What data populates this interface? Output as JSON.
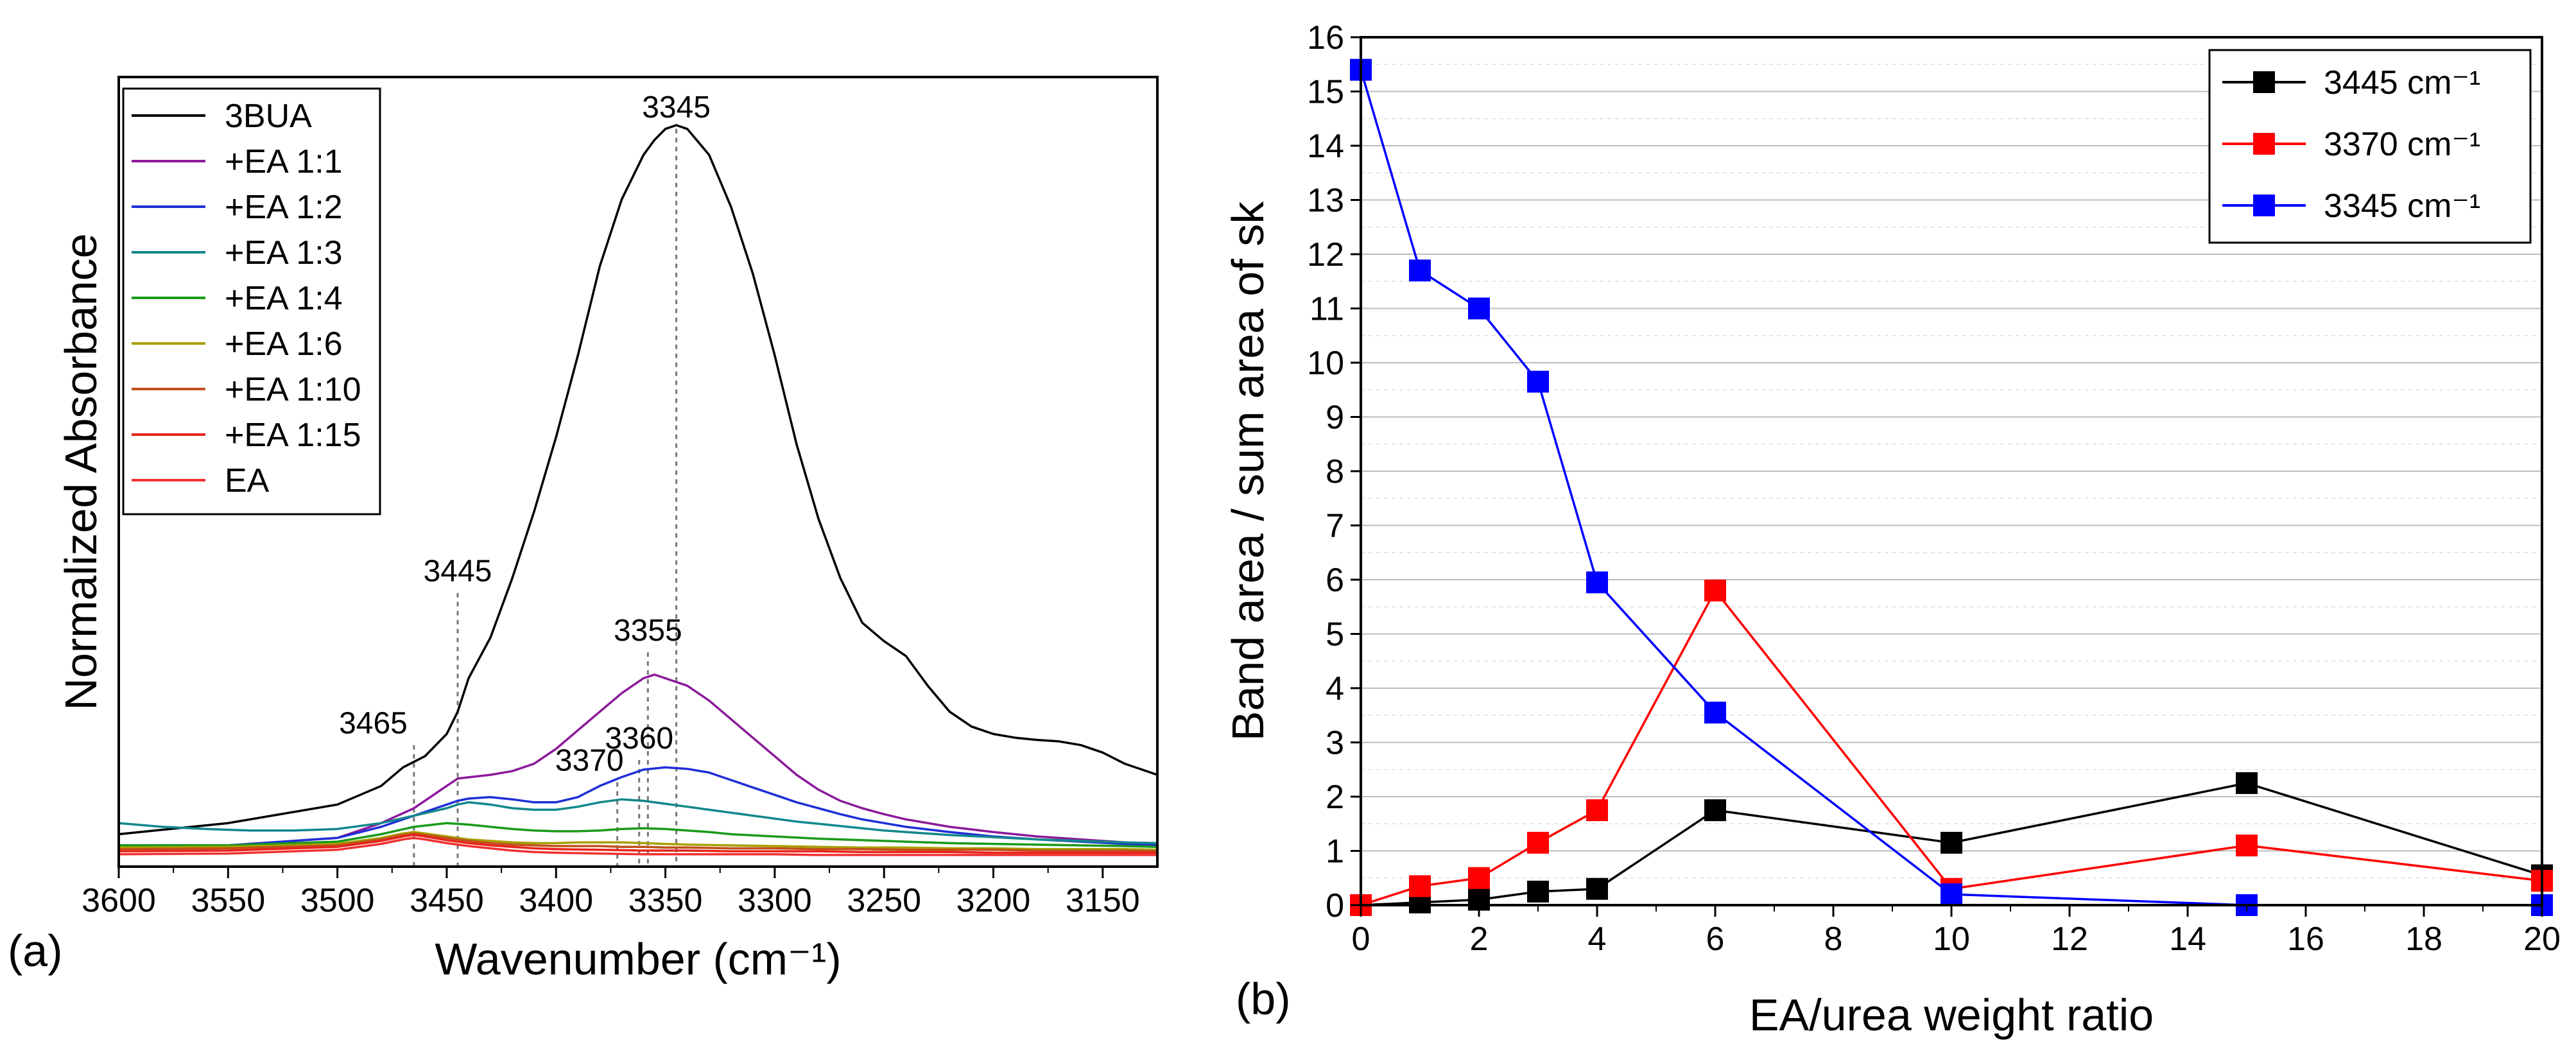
{
  "chart_data": [
    {
      "type": "line",
      "panel_label": "(a)",
      "xlabel": "Wavenumber (cm⁻¹)",
      "ylabel": "Normalized Absorbance",
      "xlim": [
        3600,
        3125
      ],
      "ylim": [
        0,
        1.02
      ],
      "x_ticks": [
        3600,
        3550,
        3500,
        3450,
        3400,
        3350,
        3300,
        3250,
        3200,
        3150
      ],
      "y_ticks_shown": false,
      "legend_position": "top-left",
      "peak_labels": [
        {
          "label": "3345",
          "x": 3345,
          "y_top": 0.985
        },
        {
          "label": "3445",
          "x": 3445,
          "y_top": 0.36
        },
        {
          "label": "3355",
          "x": 3358,
          "y_top": 0.28
        },
        {
          "label": "3465",
          "x": 3465,
          "y_top": 0.155
        },
        {
          "label": "3360",
          "x": 3362,
          "y_top": 0.135
        },
        {
          "label": "3370",
          "x": 3372,
          "y_top": 0.105
        }
      ],
      "series": [
        {
          "name": "3BUA",
          "color": "#000000",
          "x": [
            3600,
            3550,
            3500,
            3480,
            3470,
            3460,
            3450,
            3445,
            3440,
            3430,
            3420,
            3410,
            3400,
            3390,
            3380,
            3370,
            3360,
            3355,
            3350,
            3345,
            3340,
            3330,
            3320,
            3310,
            3300,
            3290,
            3280,
            3270,
            3260,
            3250,
            3240,
            3230,
            3220,
            3210,
            3200,
            3190,
            3180,
            3170,
            3160,
            3150,
            3140,
            3125
          ],
          "y": [
            0.035,
            0.05,
            0.075,
            0.1,
            0.125,
            0.14,
            0.17,
            0.2,
            0.245,
            0.3,
            0.38,
            0.47,
            0.57,
            0.68,
            0.8,
            0.89,
            0.95,
            0.97,
            0.985,
            0.99,
            0.985,
            0.95,
            0.88,
            0.79,
            0.68,
            0.56,
            0.46,
            0.38,
            0.32,
            0.295,
            0.275,
            0.235,
            0.2,
            0.18,
            0.17,
            0.165,
            0.162,
            0.16,
            0.155,
            0.145,
            0.13,
            0.115
          ]
        },
        {
          "name": "+EA 1:1",
          "color": "#8B1A9A",
          "x": [
            3600,
            3550,
            3500,
            3480,
            3465,
            3450,
            3445,
            3430,
            3420,
            3410,
            3400,
            3390,
            3380,
            3370,
            3360,
            3355,
            3350,
            3340,
            3330,
            3320,
            3310,
            3300,
            3290,
            3280,
            3270,
            3260,
            3250,
            3240,
            3220,
            3200,
            3180,
            3160,
            3140,
            3125
          ],
          "y": [
            0.02,
            0.02,
            0.03,
            0.05,
            0.07,
            0.1,
            0.11,
            0.115,
            0.12,
            0.13,
            0.15,
            0.175,
            0.2,
            0.225,
            0.245,
            0.25,
            0.245,
            0.235,
            0.215,
            0.19,
            0.165,
            0.14,
            0.115,
            0.095,
            0.08,
            0.07,
            0.062,
            0.055,
            0.045,
            0.038,
            0.032,
            0.028,
            0.024,
            0.02
          ]
        },
        {
          "name": "+EA 1:2",
          "color": "#1E2FD6",
          "x": [
            3600,
            3550,
            3500,
            3480,
            3465,
            3450,
            3445,
            3440,
            3430,
            3420,
            3410,
            3400,
            3390,
            3380,
            3370,
            3360,
            3350,
            3340,
            3330,
            3320,
            3310,
            3300,
            3290,
            3280,
            3270,
            3260,
            3250,
            3240,
            3220,
            3200,
            3180,
            3160,
            3140,
            3125
          ],
          "y": [
            0.02,
            0.02,
            0.03,
            0.045,
            0.06,
            0.075,
            0.08,
            0.083,
            0.085,
            0.082,
            0.078,
            0.078,
            0.085,
            0.1,
            0.112,
            0.122,
            0.125,
            0.123,
            0.118,
            0.108,
            0.098,
            0.088,
            0.078,
            0.07,
            0.062,
            0.055,
            0.05,
            0.045,
            0.038,
            0.032,
            0.028,
            0.025,
            0.022,
            0.02
          ]
        },
        {
          "name": "+EA 1:3",
          "color": "#13878C",
          "x": [
            3600,
            3580,
            3560,
            3540,
            3520,
            3500,
            3480,
            3465,
            3450,
            3445,
            3440,
            3430,
            3420,
            3410,
            3400,
            3390,
            3380,
            3370,
            3360,
            3350,
            3340,
            3330,
            3320,
            3310,
            3300,
            3290,
            3280,
            3270,
            3260,
            3250,
            3240,
            3220,
            3200,
            3180,
            3160,
            3140,
            3125
          ],
          "y": [
            0.05,
            0.045,
            0.042,
            0.04,
            0.04,
            0.042,
            0.05,
            0.06,
            0.07,
            0.075,
            0.078,
            0.075,
            0.07,
            0.068,
            0.068,
            0.072,
            0.078,
            0.082,
            0.08,
            0.076,
            0.072,
            0.068,
            0.064,
            0.06,
            0.056,
            0.052,
            0.049,
            0.046,
            0.043,
            0.04,
            0.038,
            0.034,
            0.031,
            0.028,
            0.026,
            0.024,
            0.023
          ]
        },
        {
          "name": "+EA 1:4",
          "color": "#1A9A1A",
          "x": [
            3600,
            3550,
            3500,
            3480,
            3465,
            3450,
            3440,
            3430,
            3420,
            3410,
            3400,
            3390,
            3380,
            3370,
            3360,
            3350,
            3340,
            3330,
            3320,
            3300,
            3280,
            3260,
            3240,
            3220,
            3200,
            3180,
            3160,
            3140,
            3125
          ],
          "y": [
            0.02,
            0.02,
            0.025,
            0.035,
            0.045,
            0.05,
            0.048,
            0.045,
            0.042,
            0.04,
            0.039,
            0.039,
            0.04,
            0.042,
            0.043,
            0.042,
            0.04,
            0.038,
            0.035,
            0.032,
            0.029,
            0.027,
            0.025,
            0.023,
            0.022,
            0.021,
            0.02,
            0.019,
            0.018
          ]
        },
        {
          "name": "+EA 1:6",
          "color": "#A8A000",
          "x": [
            3600,
            3550,
            3500,
            3480,
            3470,
            3465,
            3460,
            3450,
            3440,
            3430,
            3420,
            3410,
            3400,
            3390,
            3380,
            3370,
            3360,
            3350,
            3340,
            3320,
            3300,
            3280,
            3260,
            3240,
            3220,
            3200,
            3180,
            3160,
            3140,
            3125
          ],
          "y": [
            0.017,
            0.018,
            0.022,
            0.03,
            0.036,
            0.038,
            0.036,
            0.032,
            0.028,
            0.026,
            0.024,
            0.023,
            0.023,
            0.024,
            0.024,
            0.024,
            0.023,
            0.022,
            0.021,
            0.02,
            0.019,
            0.018,
            0.017,
            0.017,
            0.016,
            0.016,
            0.015,
            0.015,
            0.015,
            0.014
          ]
        },
        {
          "name": "+EA 1:10",
          "color": "#C0501A",
          "x": [
            3600,
            3550,
            3500,
            3480,
            3470,
            3465,
            3460,
            3450,
            3440,
            3430,
            3420,
            3410,
            3400,
            3390,
            3380,
            3370,
            3360,
            3350,
            3340,
            3320,
            3300,
            3280,
            3260,
            3240,
            3220,
            3200,
            3180,
            3160,
            3140,
            3125
          ],
          "y": [
            0.015,
            0.016,
            0.02,
            0.028,
            0.034,
            0.036,
            0.034,
            0.03,
            0.026,
            0.023,
            0.021,
            0.02,
            0.019,
            0.019,
            0.019,
            0.018,
            0.018,
            0.017,
            0.017,
            0.016,
            0.016,
            0.015,
            0.015,
            0.014,
            0.014,
            0.014,
            0.013,
            0.013,
            0.013,
            0.012
          ]
        },
        {
          "name": "+EA 1:15",
          "color": "#E8231A",
          "x": [
            3600,
            3550,
            3500,
            3480,
            3470,
            3465,
            3460,
            3450,
            3440,
            3430,
            3420,
            3410,
            3400,
            3380,
            3360,
            3340,
            3320,
            3300,
            3280,
            3260,
            3240,
            3220,
            3200,
            3180,
            3160,
            3140,
            3125
          ],
          "y": [
            0.012,
            0.013,
            0.018,
            0.026,
            0.032,
            0.034,
            0.032,
            0.027,
            0.023,
            0.02,
            0.018,
            0.016,
            0.015,
            0.014,
            0.013,
            0.013,
            0.012,
            0.012,
            0.012,
            0.011,
            0.011,
            0.011,
            0.01,
            0.01,
            0.01,
            0.01,
            0.01
          ]
        },
        {
          "name": "EA",
          "color": "#F03030",
          "x": [
            3600,
            3550,
            3500,
            3480,
            3470,
            3465,
            3460,
            3450,
            3440,
            3430,
            3420,
            3410,
            3400,
            3380,
            3360,
            3340,
            3320,
            3300,
            3280,
            3260,
            3240,
            3220,
            3200,
            3180,
            3160,
            3140,
            3125
          ],
          "y": [
            0.008,
            0.009,
            0.014,
            0.022,
            0.028,
            0.03,
            0.028,
            0.023,
            0.019,
            0.016,
            0.013,
            0.011,
            0.01,
            0.009,
            0.008,
            0.008,
            0.008,
            0.008,
            0.007,
            0.007,
            0.007,
            0.007,
            0.007,
            0.007,
            0.007,
            0.007,
            0.007
          ]
        }
      ]
    },
    {
      "type": "line",
      "marker": "square",
      "panel_label": "(b)",
      "xlabel": "EA/urea weight ratio",
      "ylabel": "Band area / sum area of sk",
      "xlim": [
        0,
        20
      ],
      "ylim": [
        0,
        16
      ],
      "x_ticks": [
        0,
        2,
        4,
        6,
        8,
        10,
        12,
        14,
        16,
        18,
        20
      ],
      "y_ticks": [
        0,
        1,
        2,
        3,
        4,
        5,
        6,
        7,
        8,
        9,
        10,
        11,
        12,
        13,
        14,
        15,
        16
      ],
      "grid": true,
      "legend_position": "top-right",
      "x": [
        0,
        1,
        2,
        3,
        4,
        6,
        10,
        15,
        20
      ],
      "series": [
        {
          "name": "3445 cm⁻¹",
          "color": "#000000",
          "values": [
            0.0,
            0.05,
            0.1,
            0.25,
            0.3,
            1.75,
            1.15,
            2.25,
            0.55
          ]
        },
        {
          "name": "3370 cm⁻¹",
          "color": "#FF0000",
          "values": [
            0.0,
            0.35,
            0.5,
            1.15,
            1.75,
            5.8,
            0.3,
            1.1,
            0.45
          ]
        },
        {
          "name": "3345 cm⁻¹",
          "color": "#0000FF",
          "values": [
            15.4,
            11.7,
            11.0,
            9.65,
            5.95,
            3.55,
            0.2,
            0.0,
            0.0
          ]
        }
      ]
    }
  ]
}
